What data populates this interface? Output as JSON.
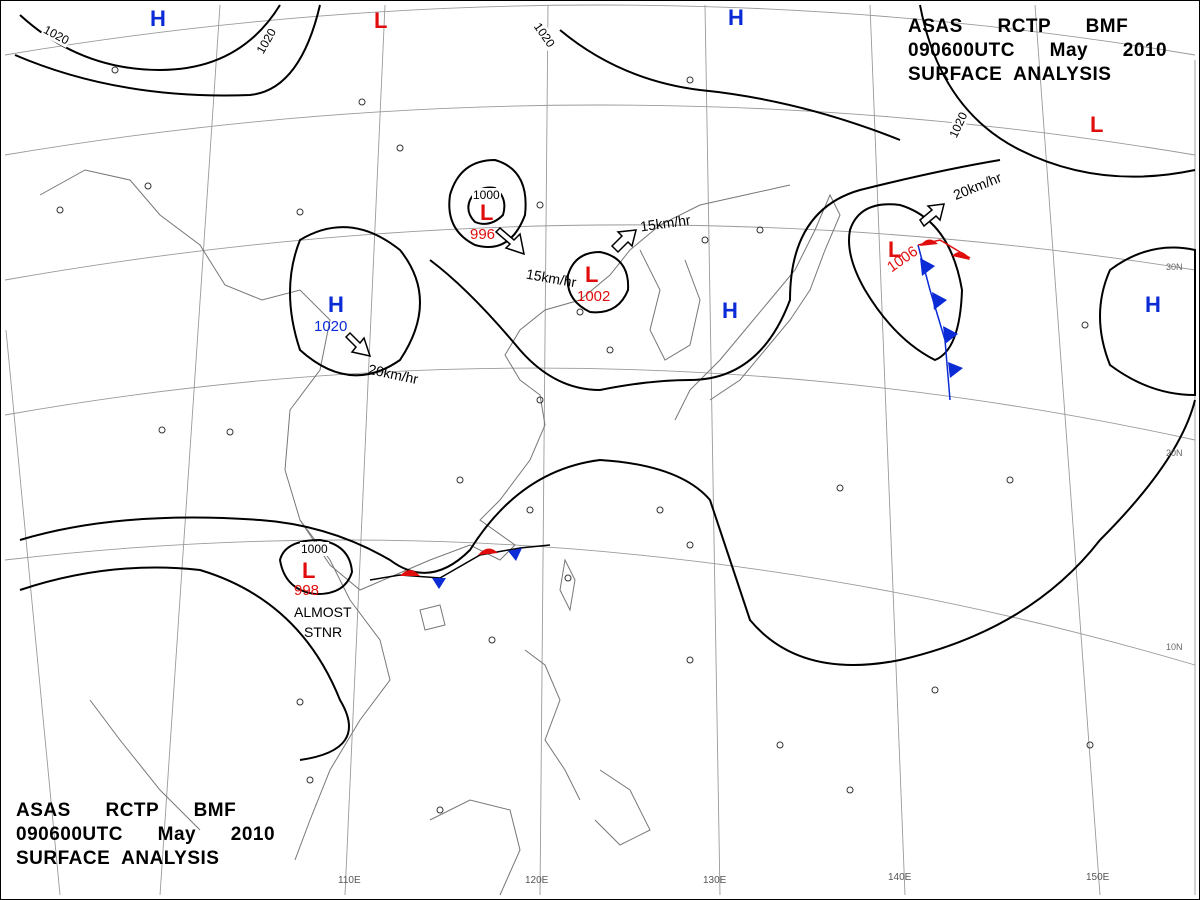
{
  "header": {
    "line1": [
      "ASAS",
      "RCTP",
      "BMF"
    ],
    "line2": [
      "090600UTC",
      "May",
      "2010"
    ],
    "line3": "SURFACE  ANALYSIS"
  },
  "systems": {
    "highs": [
      {
        "letter": "H",
        "pressure": ""
      },
      {
        "letter": "H",
        "pressure": ""
      },
      {
        "letter": "H",
        "pressure": "1020"
      },
      {
        "letter": "H",
        "pressure": ""
      },
      {
        "letter": "H",
        "pressure": ""
      }
    ],
    "lows": [
      {
        "letter": "L",
        "pressure": ""
      },
      {
        "letter": "L",
        "pressure": "996"
      },
      {
        "letter": "L",
        "pressure": "1002"
      },
      {
        "letter": "L",
        "pressure": "1006"
      },
      {
        "letter": "L",
        "pressure": "998"
      },
      {
        "letter": "L",
        "pressure": ""
      }
    ]
  },
  "isobar_labels": [
    "1020",
    "1020",
    "1020",
    "1020",
    "1000",
    "1000"
  ],
  "movement_labels": [
    "15km/hr",
    "15km/hr",
    "20km/hr",
    "20km/hr"
  ],
  "annotations": {
    "stationary_note_1": "ALMOST",
    "stationary_note_2": "STNR"
  },
  "latitude_labels": [
    "30N",
    "20N",
    "10N"
  ],
  "longitude_labels": [
    "110E",
    "120E",
    "130E",
    "140E",
    "150E"
  ],
  "colors": {
    "high": "#0a2bd6",
    "low": "#e10d0d",
    "warm_front": "#e10d0d",
    "cold_front": "#0a2bd6",
    "isobar": "#000000",
    "coast": "#777777",
    "grid": "#9a9a9a"
  }
}
